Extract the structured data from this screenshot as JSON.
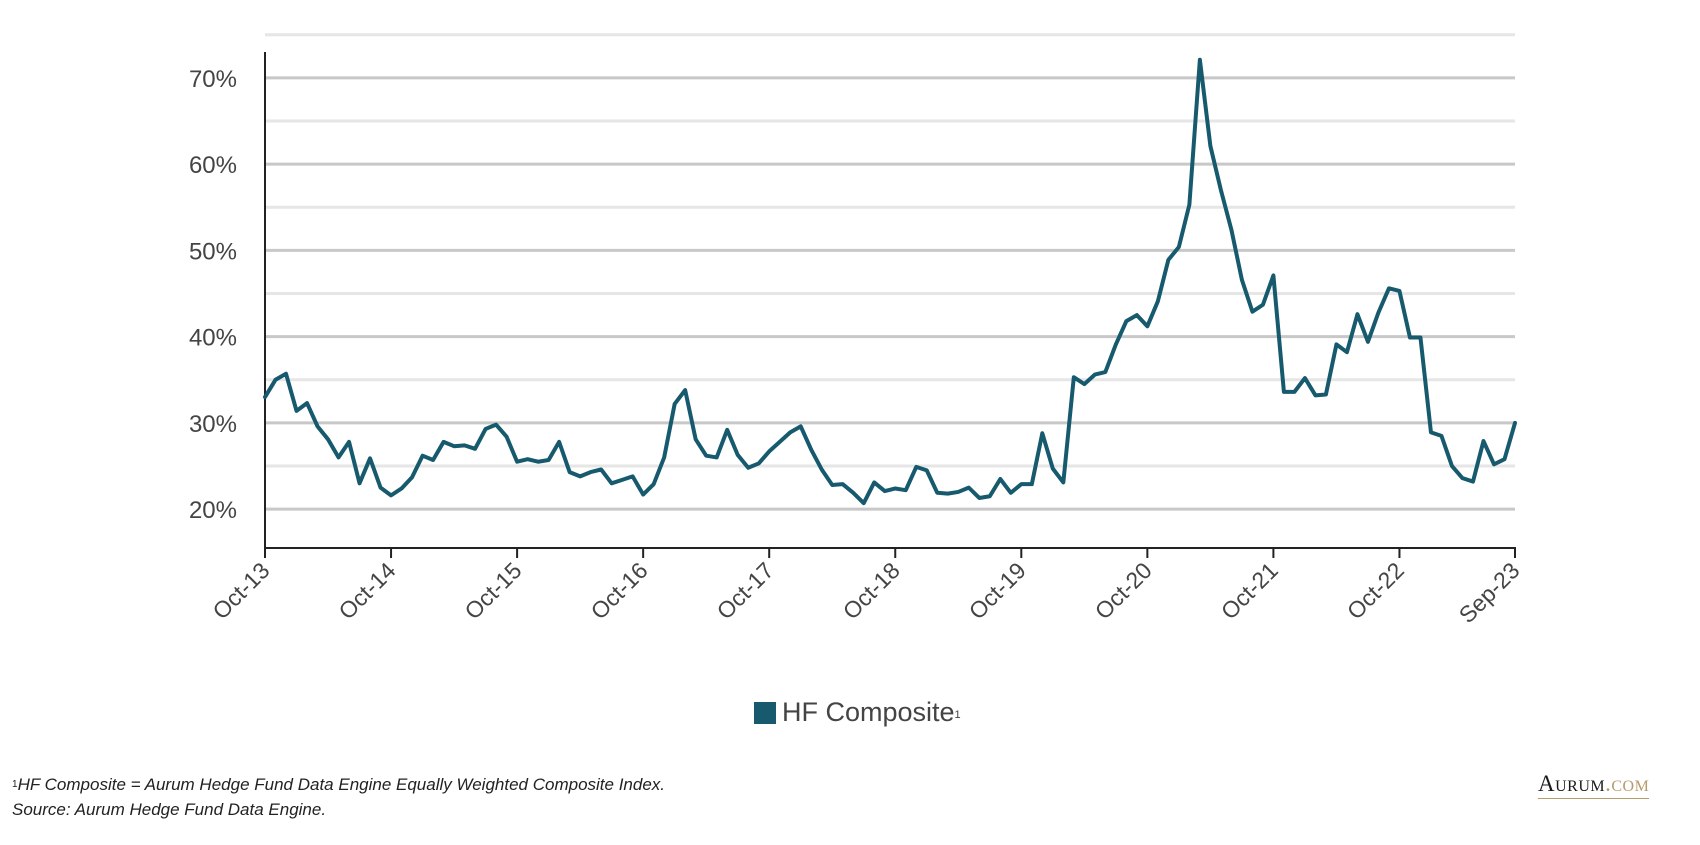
{
  "colors": {
    "series": "#175a6e",
    "grid_major": "#c8c8c8",
    "grid_minor": "#e6e6e6",
    "axis": "#222222",
    "brand_accent": "#b69b6b"
  },
  "legend": {
    "label": "HF Composite",
    "sup": "1"
  },
  "footnote": {
    "sup": "1",
    "line1": "HF Composite = Aurum Hedge Fund Data Engine Equally Weighted Composite Index.",
    "line2": "Source: Aurum Hedge Fund Data Engine."
  },
  "brand": {
    "main": "Aurum",
    "suffix": ".com"
  },
  "chart_data": {
    "type": "line",
    "title": "",
    "xlabel": "",
    "ylabel": "",
    "y_unit": "%",
    "ylim": [
      15.5,
      73
    ],
    "y_ticks": [
      20,
      30,
      40,
      50,
      60,
      70
    ],
    "y_tick_labels": [
      "20%",
      "30%",
      "40%",
      "50%",
      "60%",
      "70%"
    ],
    "y_minor_gridlines": [
      25,
      35,
      45,
      55,
      65,
      75
    ],
    "grid": true,
    "legend_position": "bottom-center",
    "x_tick_labels": [
      "Oct-13",
      "Oct-14",
      "Oct-15",
      "Oct-16",
      "Oct-17",
      "Oct-18",
      "Oct-19",
      "Oct-20",
      "Oct-21",
      "Oct-22",
      "Sep-23"
    ],
    "x_tick_months": [
      "2013-10",
      "2014-10",
      "2015-10",
      "2016-10",
      "2017-10",
      "2018-10",
      "2019-10",
      "2020-10",
      "2021-10",
      "2022-10",
      "2023-09"
    ],
    "series": [
      {
        "name": "HF Composite",
        "color": "#175a6e",
        "start": "2013-10",
        "end": "2023-09",
        "frequency": "monthly",
        "values": [
          33.0,
          35.0,
          35.7,
          31.4,
          32.3,
          29.6,
          28.1,
          26.0,
          27.8,
          23.0,
          25.9,
          22.5,
          21.6,
          22.4,
          23.7,
          26.2,
          25.7,
          27.8,
          27.3,
          27.4,
          27.0,
          29.3,
          29.8,
          28.4,
          25.5,
          25.8,
          25.5,
          25.7,
          27.8,
          24.3,
          23.8,
          24.3,
          24.6,
          23.0,
          23.4,
          23.8,
          21.7,
          22.9,
          26.0,
          32.2,
          33.8,
          28.1,
          26.2,
          26.0,
          29.2,
          26.3,
          24.8,
          25.3,
          26.7,
          27.8,
          28.9,
          29.6,
          26.9,
          24.6,
          22.8,
          22.9,
          21.9,
          20.7,
          23.1,
          22.1,
          22.4,
          22.2,
          24.9,
          24.5,
          21.9,
          21.8,
          22.0,
          22.5,
          21.3,
          21.5,
          23.5,
          21.9,
          22.9,
          22.9,
          28.8,
          24.7,
          23.1,
          35.3,
          34.5,
          35.6,
          35.9,
          39.1,
          41.8,
          42.5,
          41.2,
          44.1,
          48.9,
          50.4,
          55.3,
          72.1,
          62.1,
          57.0,
          52.4,
          46.6,
          42.9,
          43.7,
          47.1,
          33.6,
          33.6,
          35.2,
          33.2,
          33.3,
          39.1,
          38.2,
          42.6,
          39.4,
          42.8,
          45.6,
          45.3,
          39.9,
          39.9,
          28.9,
          28.5,
          25.0,
          23.6,
          23.2,
          27.9,
          25.2,
          25.8,
          30.0
        ]
      }
    ]
  }
}
